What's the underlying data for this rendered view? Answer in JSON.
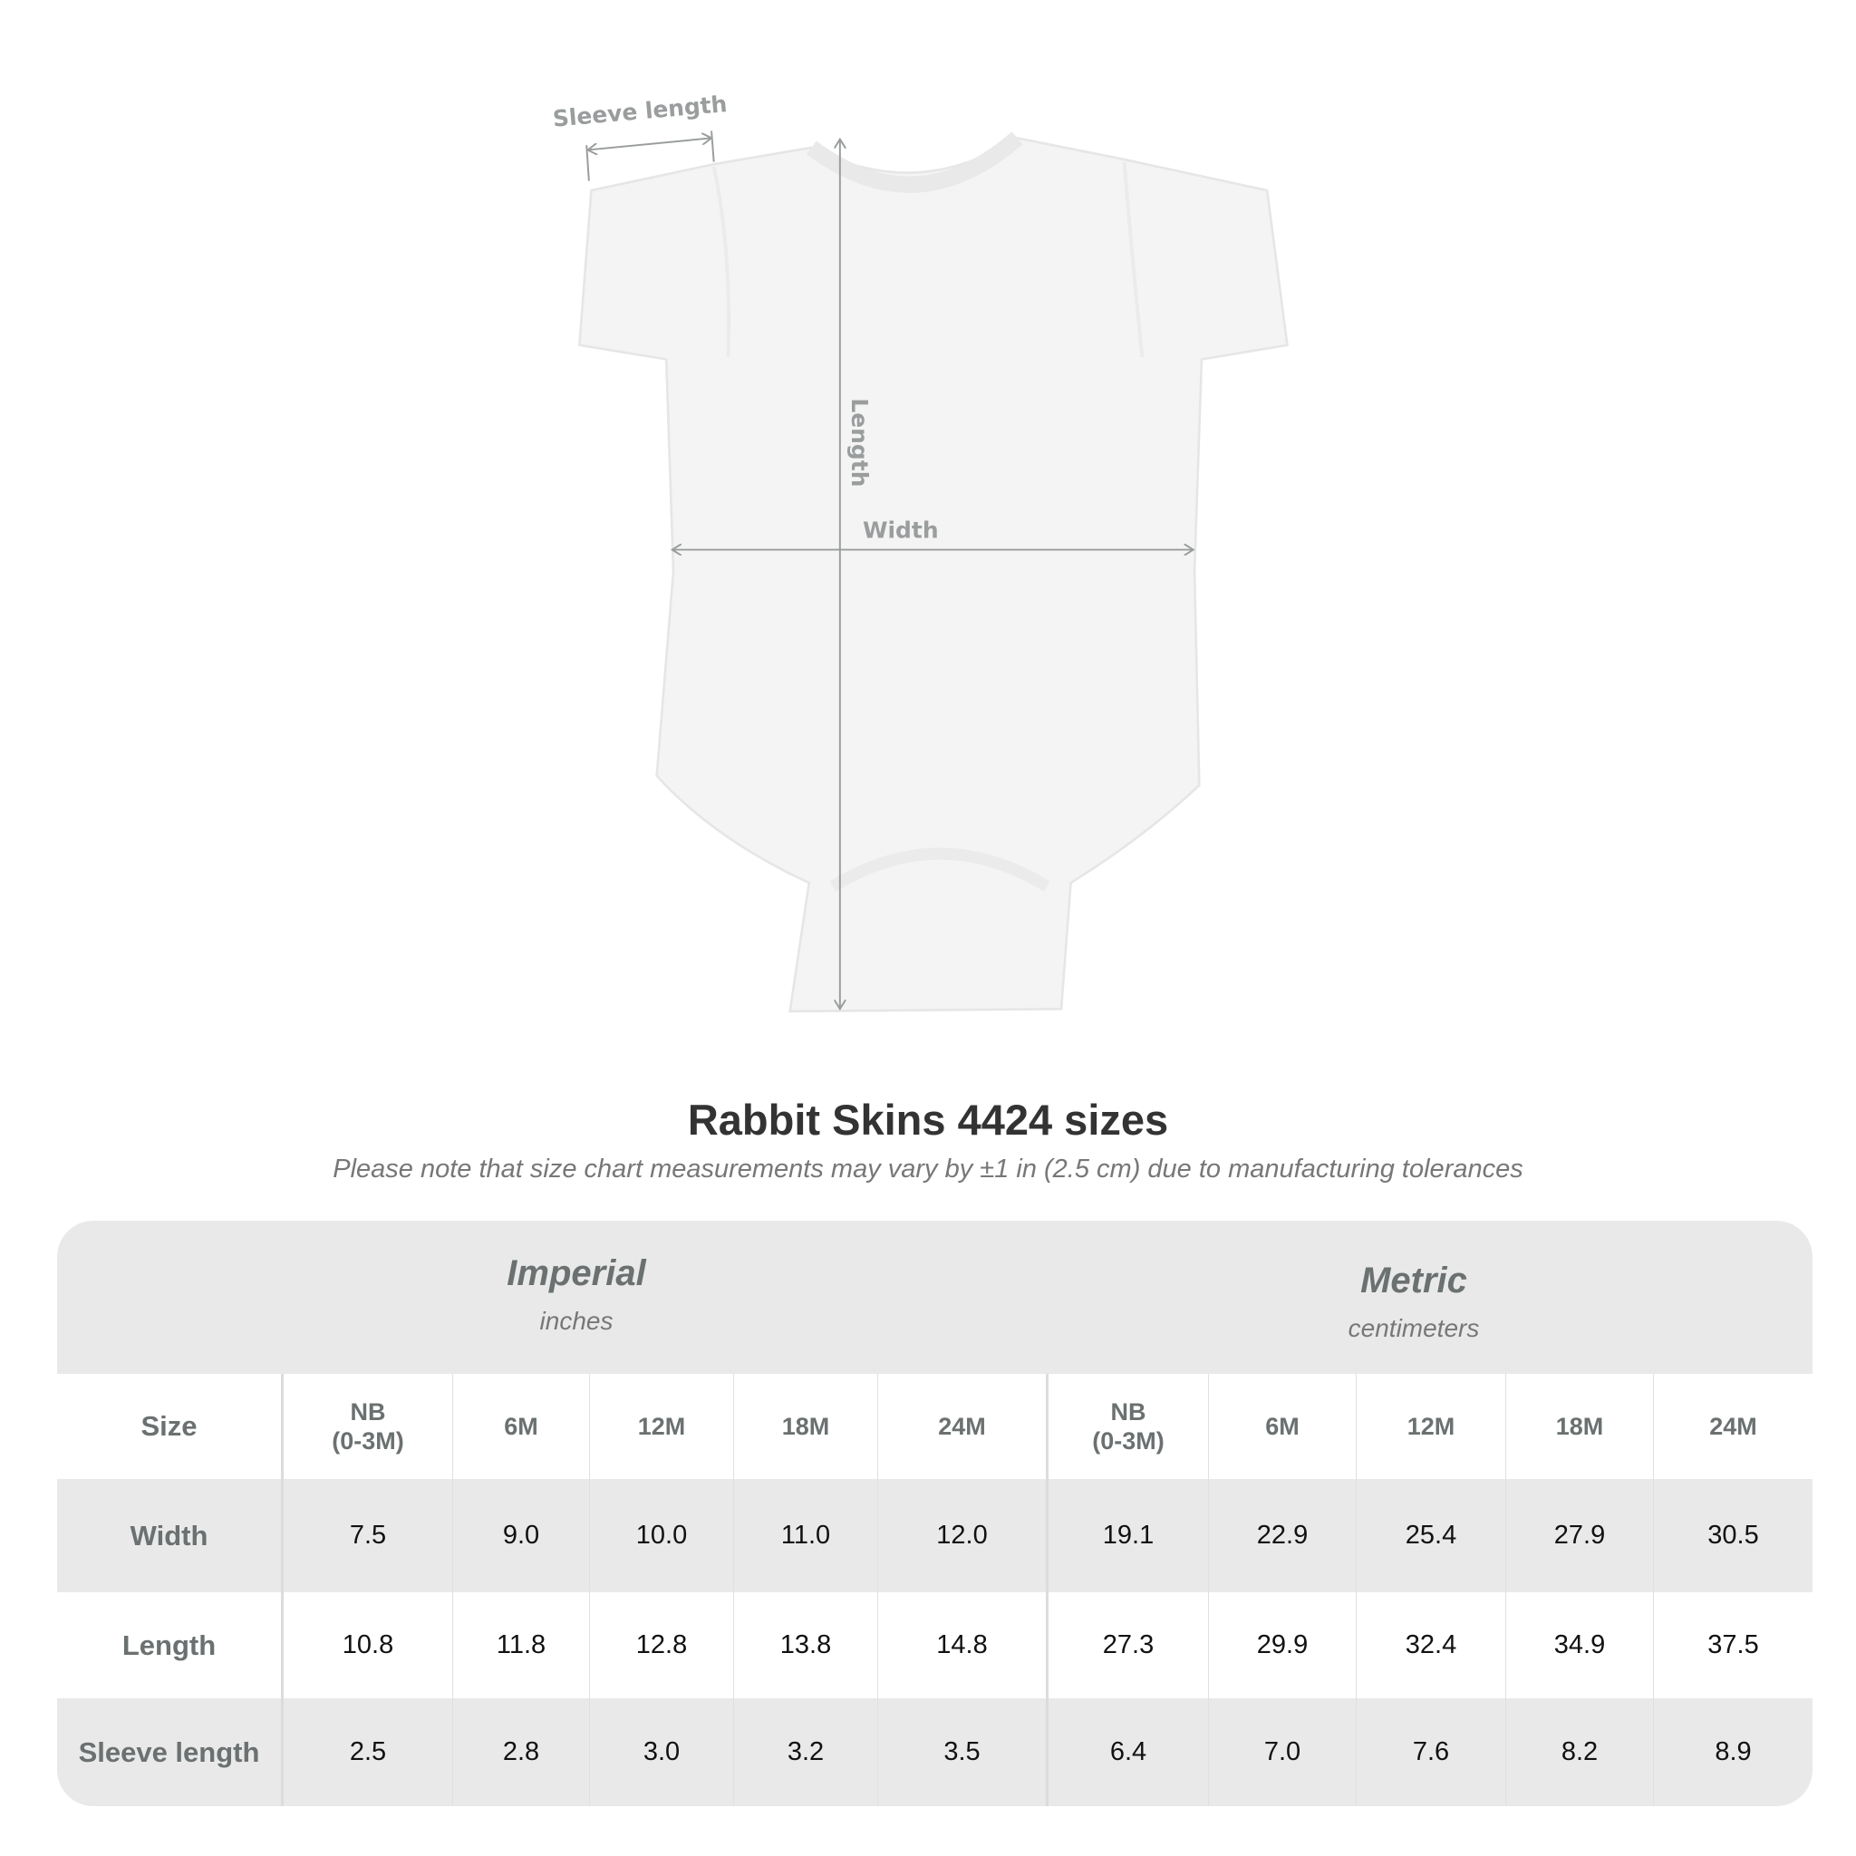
{
  "diagram": {
    "labels": {
      "sleeve": "Sleeve length",
      "length": "Length",
      "width": "Width"
    },
    "garment": "bodysuit",
    "colors": {
      "garment": "#f4f4f4",
      "measure_line": "#9a9d9d"
    }
  },
  "title": "Rabbit Skins 4424 sizes",
  "subtitle": "Please note that size chart measurements may vary by ±1 in (2.5 cm) due to manufacturing tolerances",
  "table": {
    "groups": [
      {
        "name": "Imperial",
        "unit": "inches"
      },
      {
        "name": "Metric",
        "unit": "centimeters"
      }
    ],
    "size_label": "Size",
    "sizes": [
      "NB\n(0-3M)",
      "6M",
      "12M",
      "18M",
      "24M",
      "NB\n(0-3M)",
      "6M",
      "12M",
      "18M",
      "24M"
    ],
    "rows": [
      {
        "label": "Width",
        "values": [
          "7.5",
          "9.0",
          "10.0",
          "11.0",
          "12.0",
          "19.1",
          "22.9",
          "25.4",
          "27.9",
          "30.5"
        ]
      },
      {
        "label": "Length",
        "values": [
          "10.8",
          "11.8",
          "12.8",
          "13.8",
          "14.8",
          "27.3",
          "29.9",
          "32.4",
          "34.9",
          "37.5"
        ]
      },
      {
        "label": "Sleeve length",
        "values": [
          "2.5",
          "2.8",
          "3.0",
          "3.2",
          "3.5",
          "6.4",
          "7.0",
          "7.6",
          "8.2",
          "8.9"
        ]
      }
    ],
    "colors": {
      "shaded": "#e9e9e9",
      "label": "#6b7070"
    }
  }
}
